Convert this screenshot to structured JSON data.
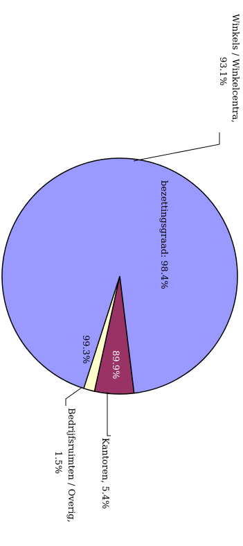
{
  "chart_data": {
    "type": "pie",
    "rotated": "90deg clockwise (text reads top-to-bottom)",
    "slices": [
      {
        "name": "Winkels / Winkelcentra",
        "share": 93.1,
        "label_lines": [
          "Winkels / Winkelcentra,",
          "93.1%"
        ],
        "inner_label": "bezettingsgraad: 98.4%",
        "color": "#9999ff"
      },
      {
        "name": "Kantoren",
        "share": 5.4,
        "label_lines": [
          "Kantoren, 5.4%"
        ],
        "inner_label": "89.9%",
        "color": "#993366"
      },
      {
        "name": "Bedrijfsruimten / Overig",
        "share": 1.5,
        "label_lines": [
          "Bedrijfsruimten / Overig,",
          "1.5%"
        ],
        "inner_label": "99.3%",
        "color": "#ffffcc"
      }
    ]
  }
}
